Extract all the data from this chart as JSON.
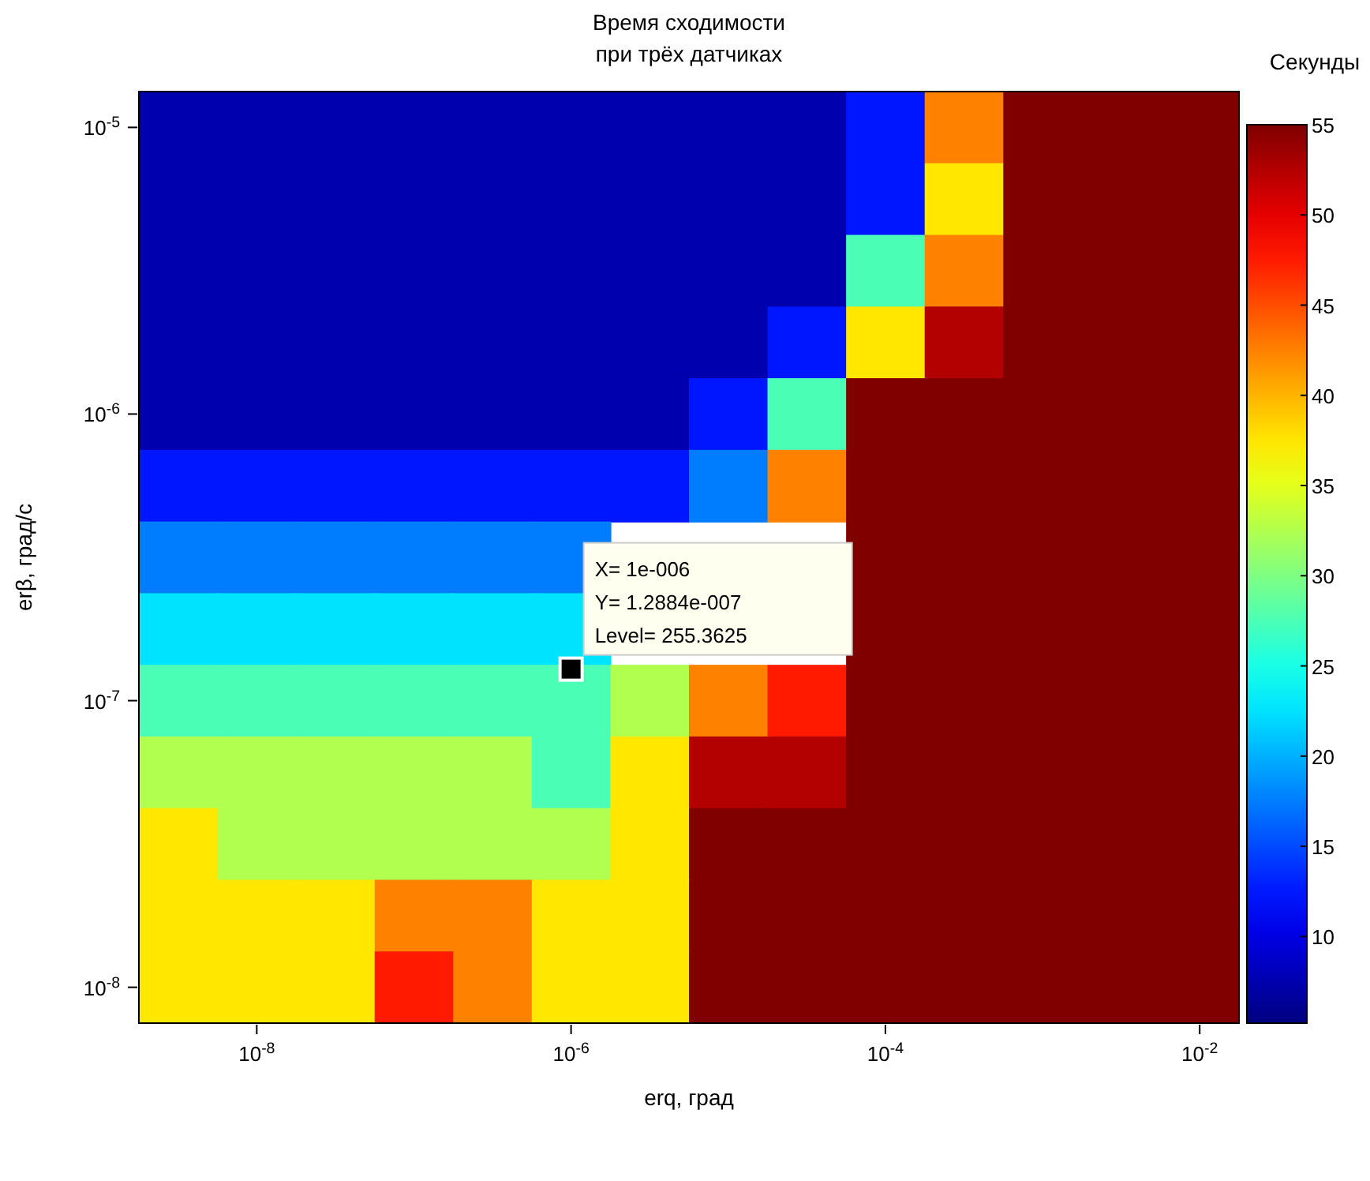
{
  "chart_data": {
    "type": "heatmap",
    "title": "Время сходимости\nпри трёх датчиках",
    "xlabel": "erq, град",
    "ylabel": "erβ, град/с",
    "clabel": "Секунды",
    "categories": [
      null,
      "10$^{-8}$",
      null,
      null,
      null,
      "10$^{-6}$",
      null,
      null,
      null,
      "10$^{-4}$",
      null,
      null,
      null,
      "10$^{-2}$"
    ],
    "y_categories": [
      "10$^{-5}$",
      null,
      null,
      null,
      "10$^{-6}$",
      null,
      null,
      null,
      "10$^{-7}$",
      null,
      null,
      null,
      "10$^{-8}$"
    ],
    "clim": [
      5.2,
      55
    ],
    "cticks": [
      55,
      50,
      45,
      40,
      35,
      30,
      25,
      20,
      15,
      10
    ],
    "cells": [
      [
        7.5,
        7.5,
        7.5,
        7.5,
        7.5,
        7.5,
        7.5,
        7.5,
        7.5,
        12.5,
        42.5,
        55,
        55,
        55
      ],
      [
        7.5,
        7.5,
        7.5,
        7.5,
        7.5,
        7.5,
        7.5,
        7.5,
        7.5,
        12.5,
        37.5,
        55,
        55,
        55
      ],
      [
        7.5,
        7.5,
        7.5,
        7.5,
        7.5,
        7.5,
        7.5,
        7.5,
        7.5,
        27.5,
        42.5,
        55,
        55,
        55
      ],
      [
        7.5,
        7.5,
        7.5,
        7.5,
        7.5,
        7.5,
        7.5,
        7.5,
        12.5,
        37.5,
        52.5,
        55,
        55,
        55
      ],
      [
        7.5,
        7.5,
        7.5,
        7.5,
        7.5,
        7.5,
        7.5,
        12.5,
        27.5,
        55,
        55,
        55,
        55,
        55
      ],
      [
        12.5,
        12.5,
        12.5,
        12.5,
        12.5,
        12.5,
        12.5,
        17.5,
        42.5,
        55,
        55,
        55,
        55,
        55
      ],
      [
        17.5,
        17.5,
        17.5,
        17.5,
        17.5,
        17.5,
        null,
        null,
        null,
        55,
        55,
        55,
        55,
        55
      ],
      [
        22.5,
        22.5,
        22.5,
        22.5,
        22.5,
        22.5,
        null,
        null,
        null,
        55,
        55,
        55,
        55,
        55
      ],
      [
        27.5,
        27.5,
        27.5,
        27.5,
        27.5,
        27.5,
        32.5,
        42.5,
        47.5,
        55,
        55,
        55,
        55,
        55
      ],
      [
        32.5,
        32.5,
        32.5,
        32.5,
        32.5,
        27.5,
        37.5,
        52.5,
        52.5,
        55,
        55,
        55,
        55,
        55
      ],
      [
        37.5,
        32.5,
        32.5,
        32.5,
        32.5,
        32.5,
        37.5,
        55,
        55,
        55,
        55,
        55,
        55,
        55
      ],
      [
        37.5,
        37.5,
        37.5,
        42.5,
        42.5,
        37.5,
        37.5,
        55,
        55,
        55,
        55,
        55,
        55,
        55
      ],
      [
        37.5,
        37.5,
        37.5,
        47.5,
        42.5,
        37.5,
        37.5,
        55,
        55,
        55,
        55,
        55,
        55,
        55
      ]
    ],
    "annotations": [
      "X= 1e-006\nY= 1.2884e-007\nLevel= 255.3625"
    ]
  }
}
